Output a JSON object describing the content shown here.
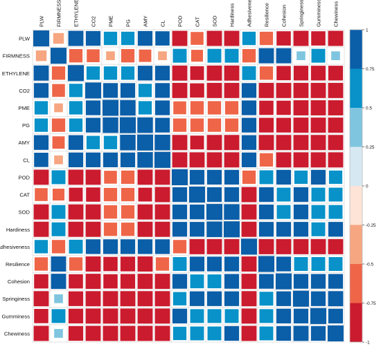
{
  "chart_data": {
    "type": "heatmap",
    "variables": [
      "PLW",
      "FIRMNESS",
      "ETHYLENE",
      "CO2",
      "PME",
      "PG",
      "AMY",
      "CL",
      "POD",
      "CAT",
      "SOD",
      "Hardiness",
      "Adhesiveness",
      "Resilience",
      "Cohesion",
      "Springiness",
      "Gumminess",
      "Chewiness"
    ],
    "matrix": [
      [
        1.0,
        -0.45,
        0.9,
        0.85,
        0.7,
        0.7,
        0.85,
        0.8,
        -0.9,
        -0.65,
        -0.9,
        -0.9,
        0.7,
        -0.7,
        -0.8,
        -0.9,
        -0.8,
        -0.9
      ],
      [
        -0.45,
        1.0,
        -0.7,
        -0.65,
        -0.3,
        -0.7,
        -0.6,
        -0.3,
        0.75,
        -0.55,
        0.75,
        0.75,
        -0.7,
        0.9,
        0.9,
        0.3,
        0.75,
        0.3
      ],
      [
        0.9,
        -0.7,
        1.0,
        0.7,
        0.7,
        0.7,
        0.85,
        0.85,
        -0.9,
        -0.75,
        -0.9,
        -0.9,
        0.75,
        -0.7,
        -0.8,
        -0.85,
        -0.85,
        -0.85
      ],
      [
        0.85,
        -0.65,
        0.7,
        1.0,
        0.85,
        0.85,
        0.7,
        0.85,
        -0.9,
        -0.8,
        -0.9,
        -0.9,
        0.85,
        -0.9,
        -0.9,
        -0.9,
        -0.9,
        -0.9
      ],
      [
        0.7,
        -0.3,
        0.7,
        0.85,
        1.0,
        0.95,
        0.7,
        0.85,
        -0.65,
        -0.7,
        -0.7,
        -0.7,
        0.85,
        -0.8,
        -0.8,
        -0.9,
        -0.9,
        -0.9
      ],
      [
        0.7,
        -0.7,
        0.7,
        0.85,
        0.95,
        1.0,
        0.95,
        0.85,
        -0.7,
        -0.7,
        -0.7,
        -0.7,
        0.85,
        -0.85,
        -0.85,
        -0.9,
        -0.9,
        -0.9
      ],
      [
        0.85,
        -0.6,
        0.85,
        0.7,
        0.7,
        0.95,
        1.0,
        0.95,
        -0.9,
        -0.75,
        -0.9,
        -0.9,
        0.85,
        -0.9,
        -0.9,
        -0.9,
        -0.9,
        -0.9
      ],
      [
        0.8,
        -0.3,
        0.85,
        0.85,
        0.85,
        0.85,
        0.95,
        1.0,
        -0.9,
        -0.9,
        -0.9,
        -0.9,
        0.85,
        -0.7,
        -0.9,
        -0.9,
        -0.9,
        -0.9
      ],
      [
        -0.9,
        0.75,
        -0.9,
        -0.9,
        -0.65,
        -0.7,
        -0.9,
        -0.9,
        1.0,
        0.85,
        0.85,
        0.85,
        -0.7,
        0.75,
        0.85,
        0.7,
        0.85,
        0.7
      ],
      [
        -0.65,
        -0.55,
        -0.75,
        -0.8,
        -0.7,
        -0.7,
        -0.75,
        -0.9,
        0.85,
        1.0,
        0.85,
        0.85,
        -0.9,
        0.85,
        0.75,
        0.85,
        0.75,
        0.75
      ],
      [
        -0.9,
        0.75,
        -0.9,
        -0.9,
        -0.7,
        -0.7,
        -0.9,
        -0.9,
        0.85,
        0.85,
        1.0,
        0.95,
        -0.9,
        0.85,
        0.75,
        0.85,
        0.75,
        0.75
      ],
      [
        -0.9,
        0.75,
        -0.9,
        -0.9,
        -0.7,
        -0.7,
        -0.9,
        -0.9,
        0.85,
        0.85,
        0.95,
        1.0,
        -0.9,
        0.85,
        0.85,
        0.85,
        0.75,
        0.85
      ],
      [
        0.7,
        -0.7,
        0.75,
        0.85,
        0.85,
        0.85,
        0.85,
        0.85,
        -0.7,
        -0.9,
        -0.9,
        -0.9,
        1.0,
        -0.9,
        -0.9,
        -0.9,
        -0.9,
        -0.9
      ],
      [
        -0.7,
        0.9,
        -0.7,
        -0.9,
        -0.8,
        -0.85,
        -0.9,
        -0.7,
        0.75,
        0.85,
        0.85,
        0.85,
        -0.9,
        1.0,
        0.85,
        0.75,
        0.75,
        0.75
      ],
      [
        -0.8,
        0.9,
        -0.8,
        -0.9,
        -0.8,
        -0.85,
        -0.9,
        -0.9,
        0.85,
        0.75,
        0.75,
        0.85,
        -0.9,
        0.85,
        1.0,
        0.85,
        0.85,
        0.85
      ],
      [
        -0.9,
        0.3,
        -0.85,
        -0.9,
        -0.9,
        -0.9,
        -0.9,
        -0.9,
        0.7,
        0.85,
        0.85,
        0.85,
        -0.9,
        0.75,
        0.85,
        1.0,
        0.85,
        0.9
      ],
      [
        -0.8,
        0.75,
        -0.85,
        -0.9,
        -0.9,
        -0.9,
        -0.9,
        -0.9,
        0.85,
        0.75,
        0.75,
        0.75,
        -0.9,
        0.75,
        0.85,
        0.85,
        1.0,
        0.85
      ],
      [
        -0.9,
        0.3,
        -0.85,
        -0.9,
        -0.9,
        -0.9,
        -0.9,
        -0.9,
        0.7,
        0.75,
        0.75,
        0.85,
        -0.9,
        0.75,
        0.85,
        0.9,
        0.85,
        1.0
      ]
    ],
    "color_scale": {
      "breaks": [
        1,
        0.75,
        0.5,
        0.25,
        0,
        -0.25,
        -0.5,
        -0.75,
        -1
      ],
      "colors": [
        "#0b5ea8",
        "#0892c9",
        "#7fc5e0",
        "#d6e9f2",
        "#fde4d6",
        "#f6a681",
        "#ef6548",
        "#cb1b2e"
      ],
      "tick_labels": [
        "1",
        "0.75",
        "0.5",
        "0.25",
        "0",
        "-0.25",
        "-0.5",
        "-0.75",
        "-1"
      ]
    },
    "xlim": [
      -1,
      1
    ],
    "legend_position": "right",
    "grid": true
  }
}
